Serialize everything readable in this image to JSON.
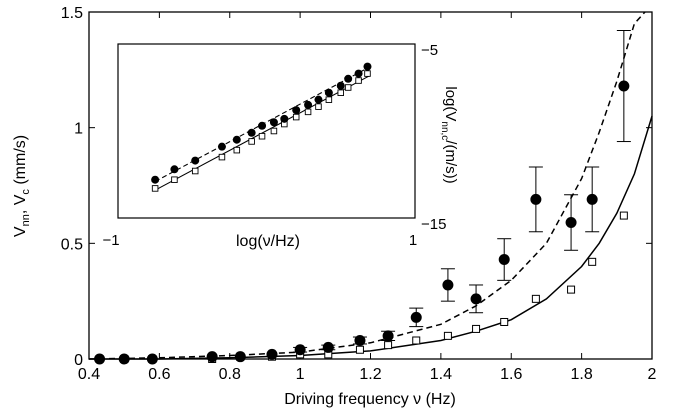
{
  "chart_data": [
    {
      "type": "scatter",
      "xlabel": "Driving frequency ν (Hz)",
      "ylabel": "V_nn, V_c (mm/s)",
      "xlim": [
        0.4,
        2.0
      ],
      "ylim": [
        0,
        1.5
      ],
      "x_ticks": [
        "0.4",
        "0.6",
        "0.8",
        "1",
        "1.2",
        "1.4",
        "1.6",
        "1.8",
        "2"
      ],
      "y_ticks": [
        "0",
        "0.5",
        "1",
        "1.5"
      ],
      "grid": false,
      "series": [
        {
          "marker": "filled-circle",
          "x": [
            0.43,
            0.5,
            0.58,
            0.75,
            0.83,
            0.92,
            1.0,
            1.08,
            1.17,
            1.25,
            1.33,
            1.42,
            1.5,
            1.58,
            1.67,
            1.77,
            1.83,
            1.92
          ],
          "y": [
            0.0,
            0.0,
            0.0,
            0.01,
            0.01,
            0.02,
            0.04,
            0.05,
            0.08,
            0.1,
            0.18,
            0.32,
            0.26,
            0.43,
            0.69,
            0.59,
            0.69,
            1.18
          ],
          "err": [
            0.0,
            0.0,
            0.0,
            0.0,
            0.0,
            0.0,
            0.01,
            0.01,
            0.015,
            0.02,
            0.04,
            0.07,
            0.06,
            0.09,
            0.14,
            0.12,
            0.14,
            0.24
          ]
        },
        {
          "marker": "open-square",
          "x": [
            0.43,
            0.5,
            0.58,
            0.75,
            0.83,
            0.92,
            1.0,
            1.08,
            1.17,
            1.25,
            1.33,
            1.42,
            1.5,
            1.58,
            1.67,
            1.77,
            1.83,
            1.92
          ],
          "y": [
            0.0,
            0.0,
            0.0,
            0.0,
            0.01,
            0.01,
            0.02,
            0.02,
            0.04,
            0.06,
            0.08,
            0.1,
            0.13,
            0.16,
            0.26,
            0.3,
            0.42,
            0.62
          ]
        }
      ],
      "fit_curves": [
        {
          "style": "dashed",
          "x": [
            0.4,
            0.6,
            0.8,
            1.0,
            1.2,
            1.4,
            1.5,
            1.6,
            1.7,
            1.8,
            1.85,
            1.9,
            1.95,
            1.98
          ],
          "y": [
            0.0,
            0.005,
            0.015,
            0.03,
            0.07,
            0.15,
            0.23,
            0.34,
            0.5,
            0.78,
            0.98,
            1.2,
            1.45,
            1.5
          ]
        },
        {
          "style": "solid",
          "x": [
            0.4,
            0.6,
            0.8,
            1.0,
            1.2,
            1.4,
            1.5,
            1.6,
            1.7,
            1.8,
            1.85,
            1.9,
            1.95,
            2.0
          ],
          "y": [
            0.0,
            0.0,
            0.005,
            0.015,
            0.035,
            0.08,
            0.12,
            0.17,
            0.26,
            0.4,
            0.5,
            0.63,
            0.8,
            1.05
          ]
        }
      ]
    },
    {
      "type": "scatter",
      "xlabel": "log(ν/Hz)",
      "ylabel": "log(V_nn,c/(m/s))",
      "xlim": [
        -1,
        1
      ],
      "ylim": [
        -15,
        -5
      ],
      "x_ticks": [
        "−1",
        "1"
      ],
      "y_ticks": [
        "−15",
        "−5"
      ],
      "series": [
        {
          "marker": "filled-circle",
          "x": [
            -0.75,
            -0.62,
            -0.48,
            -0.3,
            -0.2,
            -0.1,
            -0.03,
            0.05,
            0.12,
            0.2,
            0.28,
            0.35,
            0.42,
            0.5,
            0.55,
            0.62,
            0.68
          ],
          "y": [
            -12.8,
            -12.2,
            -11.7,
            -10.9,
            -10.5,
            -10.1,
            -9.7,
            -9.5,
            -9.3,
            -8.8,
            -8.5,
            -8.2,
            -7.8,
            -7.4,
            -7.0,
            -6.7,
            -6.3
          ]
        },
        {
          "marker": "open-square",
          "x": [
            -0.75,
            -0.62,
            -0.48,
            -0.3,
            -0.2,
            -0.1,
            -0.03,
            0.05,
            0.12,
            0.2,
            0.28,
            0.35,
            0.42,
            0.5,
            0.55,
            0.62,
            0.68
          ],
          "y": [
            -13.3,
            -12.8,
            -12.3,
            -11.5,
            -11.1,
            -10.6,
            -10.3,
            -10.0,
            -9.6,
            -9.2,
            -8.9,
            -8.6,
            -8.2,
            -7.8,
            -7.5,
            -7.1,
            -6.7
          ]
        }
      ],
      "fit_curves": [
        {
          "style": "dashed",
          "x": [
            -0.75,
            0.7
          ],
          "y": [
            -12.9,
            -6.3
          ]
        },
        {
          "style": "solid",
          "x": [
            -0.75,
            0.7
          ],
          "y": [
            -13.4,
            -6.8
          ]
        }
      ]
    }
  ]
}
